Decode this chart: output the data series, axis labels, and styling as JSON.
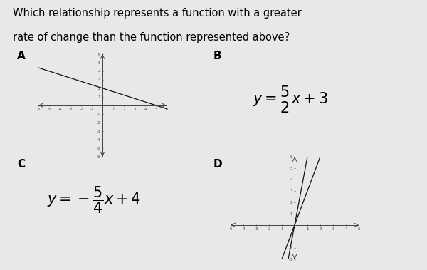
{
  "title_line1": "Which relationship represents a function with a greater",
  "title_line2": "rate of change than the function represented above?",
  "title_fontsize": 10.5,
  "paper_color": "#e8e8e8",
  "dark_right": "#5a5a5a",
  "label_A": "A",
  "label_B": "B",
  "label_C": "C",
  "label_D": "D",
  "eq_B": "$y = \\dfrac{5}{2}x + 3$",
  "eq_C": "$y = -\\dfrac{5}{4}x + 4$",
  "graph_A_slope": -0.4,
  "graph_A_intercept": 2.0,
  "graph_A_xlim": [
    -6,
    6
  ],
  "graph_A_ylim": [
    -6,
    6
  ],
  "graph_D_line1_slope": 6,
  "graph_D_line1_intercept": 0,
  "graph_D_line2_slope": 3,
  "graph_D_line2_intercept": 0,
  "graph_D_xlim": [
    -5,
    5
  ],
  "graph_D_ylim": [
    -3,
    6
  ],
  "tick_color": "#444444",
  "axis_color": "#444444",
  "line_color": "#111111",
  "label_fontsize": 11,
  "eq_fontsize": 12
}
